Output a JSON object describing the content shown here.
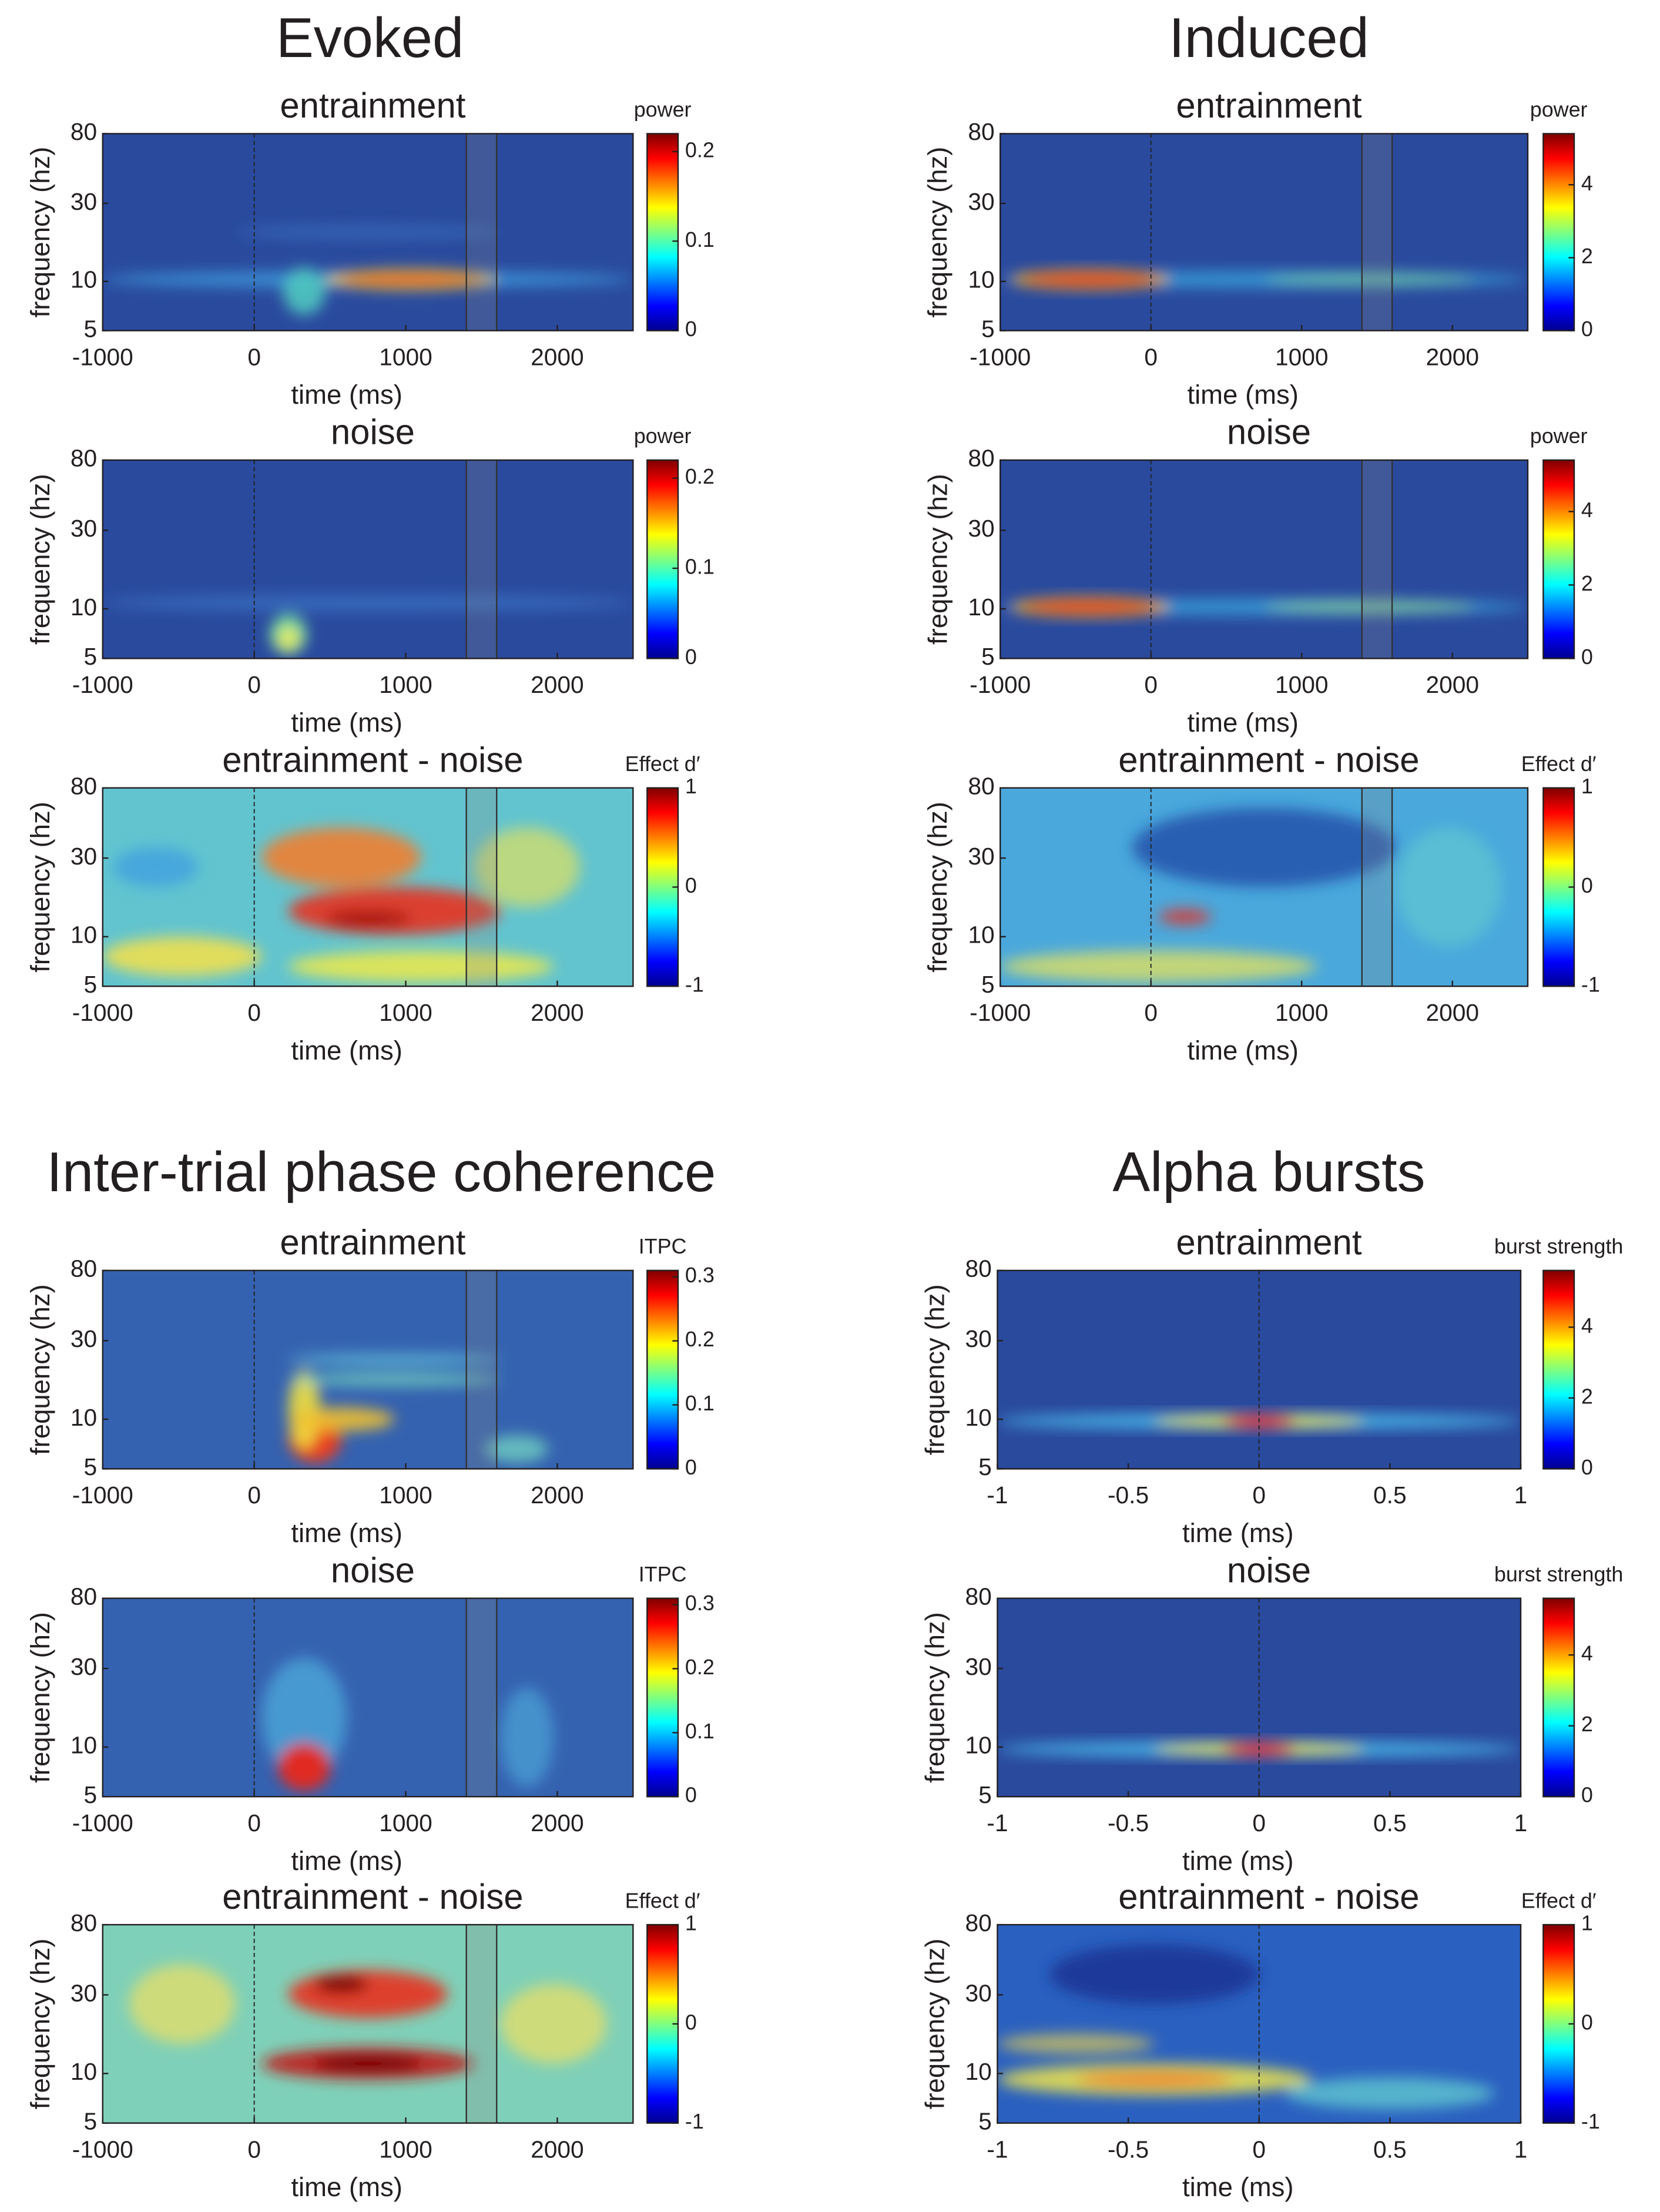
{
  "section_titles": [
    "Evoked",
    "Induced",
    "Inter-trial phase coherence",
    "Alpha bursts"
  ],
  "chart_data": [
    {
      "type": "heatmap",
      "title": "entrainment",
      "xlabel": "time (ms)",
      "ylabel": "frequency (hz)",
      "xlim": [
        -1000,
        2500
      ],
      "xticks": [
        -1000,
        0,
        1000,
        2000
      ],
      "ylim": [
        5,
        80
      ],
      "yticks": [
        5,
        10,
        30,
        80
      ],
      "log_y": true,
      "colormap": "jet",
      "colorbar": {
        "label": "power",
        "lim": [
          0,
          0.22
        ],
        "ticks": [
          0,
          0.1,
          0.2
        ]
      },
      "dashed_lines": [
        0
      ],
      "band": [
        1400,
        1600
      ]
    },
    {
      "type": "heatmap",
      "title": "noise",
      "xlabel": "time (ms)",
      "ylabel": "frequency (hz)",
      "xlim": [
        -1000,
        2500
      ],
      "xticks": [
        -1000,
        0,
        1000,
        2000
      ],
      "ylim": [
        5,
        80
      ],
      "yticks": [
        5,
        10,
        30,
        80
      ],
      "log_y": true,
      "colormap": "jet",
      "colorbar": {
        "label": "power",
        "lim": [
          0,
          0.22
        ],
        "ticks": [
          0,
          0.1,
          0.2
        ]
      },
      "dashed_lines": [
        0
      ],
      "band": [
        1400,
        1600
      ]
    },
    {
      "type": "heatmap",
      "title": "entrainment - noise",
      "xlabel": "time (ms)",
      "ylabel": "frequency (hz)",
      "xlim": [
        -1000,
        2500
      ],
      "xticks": [
        -1000,
        0,
        1000,
        2000
      ],
      "ylim": [
        5,
        80
      ],
      "yticks": [
        5,
        10,
        30,
        80
      ],
      "log_y": true,
      "colormap": "jet",
      "colorbar": {
        "label": "Effect d′",
        "lim": [
          -1,
          1
        ],
        "ticks": [
          -1,
          0,
          1
        ]
      },
      "dashed_lines": [
        0
      ],
      "band": [
        1400,
        1600
      ]
    },
    {
      "type": "heatmap",
      "title": "entrainment",
      "xlabel": "time (ms)",
      "ylabel": "frequency (hz)",
      "xlim": [
        -1000,
        2500
      ],
      "xticks": [
        -1000,
        0,
        1000,
        2000
      ],
      "ylim": [
        5,
        80
      ],
      "yticks": [
        5,
        10,
        30,
        80
      ],
      "log_y": true,
      "colormap": "jet",
      "colorbar": {
        "label": "power",
        "lim": [
          0,
          5.4
        ],
        "ticks": [
          0,
          2,
          4
        ]
      },
      "dashed_lines": [
        0
      ],
      "band": [
        1400,
        1600
      ]
    },
    {
      "type": "heatmap",
      "title": "noise",
      "xlabel": "time (ms)",
      "ylabel": "frequency (hz)",
      "xlim": [
        -1000,
        2500
      ],
      "xticks": [
        -1000,
        0,
        1000,
        2000
      ],
      "ylim": [
        5,
        80
      ],
      "yticks": [
        5,
        10,
        30,
        80
      ],
      "log_y": true,
      "colormap": "jet",
      "colorbar": {
        "label": "power",
        "lim": [
          0,
          5.4
        ],
        "ticks": [
          0,
          2,
          4
        ]
      },
      "dashed_lines": [
        0
      ],
      "band": [
        1400,
        1600
      ]
    },
    {
      "type": "heatmap",
      "title": "entrainment - noise",
      "xlabel": "time (ms)",
      "ylabel": "frequency (hz)",
      "xlim": [
        -1000,
        2500
      ],
      "xticks": [
        -1000,
        0,
        1000,
        2000
      ],
      "ylim": [
        5,
        80
      ],
      "yticks": [
        5,
        10,
        30,
        80
      ],
      "log_y": true,
      "colormap": "jet",
      "colorbar": {
        "label": "Effect d′",
        "lim": [
          -1,
          1
        ],
        "ticks": [
          -1,
          0,
          1
        ]
      },
      "dashed_lines": [
        0
      ],
      "band": [
        1400,
        1600
      ]
    },
    {
      "type": "heatmap",
      "title": "entrainment",
      "xlabel": "time (ms)",
      "ylabel": "frequency (hz)",
      "xlim": [
        -1000,
        2500
      ],
      "xticks": [
        -1000,
        0,
        1000,
        2000
      ],
      "ylim": [
        5,
        80
      ],
      "yticks": [
        5,
        10,
        30,
        80
      ],
      "log_y": true,
      "colormap": "jet",
      "colorbar": {
        "label": "ITPC",
        "lim": [
          0,
          0.31
        ],
        "ticks": [
          0,
          0.1,
          0.2,
          0.3
        ]
      },
      "dashed_lines": [
        0
      ],
      "band": [
        1400,
        1600
      ]
    },
    {
      "type": "heatmap",
      "title": "noise",
      "xlabel": "time (ms)",
      "ylabel": "frequency (hz)",
      "xlim": [
        -1000,
        2500
      ],
      "xticks": [
        -1000,
        0,
        1000,
        2000
      ],
      "ylim": [
        5,
        80
      ],
      "yticks": [
        5,
        10,
        30,
        80
      ],
      "log_y": true,
      "colormap": "jet",
      "colorbar": {
        "label": "ITPC",
        "lim": [
          0,
          0.31
        ],
        "ticks": [
          0,
          0.1,
          0.2,
          0.3
        ]
      },
      "dashed_lines": [
        0
      ],
      "band": [
        1400,
        1600
      ]
    },
    {
      "type": "heatmap",
      "title": "entrainment - noise",
      "xlabel": "time (ms)",
      "ylabel": "frequency (hz)",
      "xlim": [
        -1000,
        2500
      ],
      "xticks": [
        -1000,
        0,
        1000,
        2000
      ],
      "ylim": [
        5,
        80
      ],
      "yticks": [
        5,
        10,
        30,
        80
      ],
      "log_y": true,
      "colormap": "jet",
      "colorbar": {
        "label": "Effect d′",
        "lim": [
          -1,
          1
        ],
        "ticks": [
          -1,
          0,
          1
        ]
      },
      "dashed_lines": [
        0
      ],
      "band": [
        1400,
        1600
      ]
    },
    {
      "type": "heatmap",
      "title": "entrainment",
      "xlabel": "time (ms)",
      "ylabel": "frequency (hz)",
      "xlim": [
        -1,
        1
      ],
      "xticks": [
        -1,
        -0.5,
        0,
        0.5,
        1
      ],
      "ylim": [
        5,
        80
      ],
      "yticks": [
        5,
        10,
        30,
        80
      ],
      "log_y": true,
      "colormap": "jet",
      "colorbar": {
        "label": "burst strength",
        "lim": [
          0,
          5.6
        ],
        "ticks": [
          0,
          2,
          4
        ]
      },
      "dashed_lines": [
        0
      ]
    },
    {
      "type": "heatmap",
      "title": "noise",
      "xlabel": "time (ms)",
      "ylabel": "frequency (hz)",
      "xlim": [
        -1,
        1
      ],
      "xticks": [
        -1,
        -0.5,
        0,
        0.5,
        1
      ],
      "ylim": [
        5,
        80
      ],
      "yticks": [
        5,
        10,
        30,
        80
      ],
      "log_y": true,
      "colormap": "jet",
      "colorbar": {
        "label": "burst strength",
        "lim": [
          0,
          5.6
        ],
        "ticks": [
          0,
          2,
          4
        ]
      },
      "dashed_lines": [
        0
      ]
    },
    {
      "type": "heatmap",
      "title": "entrainment - noise",
      "xlabel": "time (ms)",
      "ylabel": "frequency (hz)",
      "xlim": [
        -1,
        1
      ],
      "xticks": [
        -1,
        -0.5,
        0,
        0.5,
        1
      ],
      "ylim": [
        5,
        80
      ],
      "yticks": [
        5,
        10,
        30,
        80
      ],
      "log_y": true,
      "colormap": "jet",
      "colorbar": {
        "label": "Effect d′",
        "lim": [
          -1,
          1
        ],
        "ticks": [
          -1,
          0,
          1
        ]
      },
      "dashed_lines": [
        0
      ]
    }
  ]
}
